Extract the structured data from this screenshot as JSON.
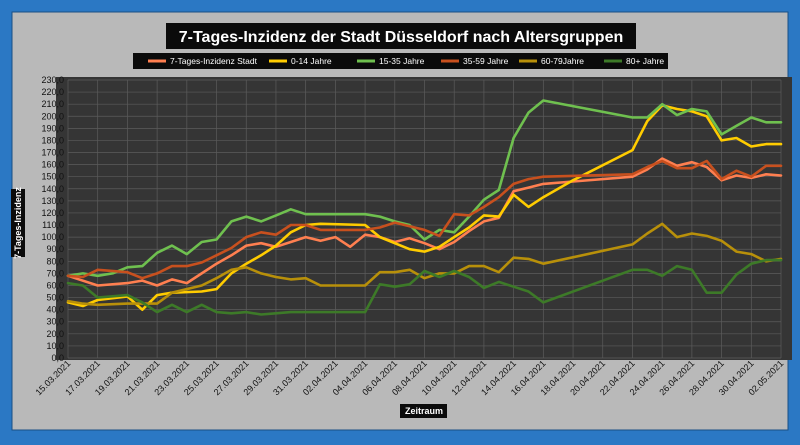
{
  "chart_data": {
    "type": "line",
    "title": "7-Tages-Inzidenz der Stadt Düsseldorf nach Altersgruppen",
    "xlabel": "Zeitraum",
    "ylabel": "7-Tages-Inzidenz",
    "ylim": [
      0,
      230
    ],
    "ytick_step": 10,
    "grid": true,
    "legend_position": "top",
    "x_start": "15.03.2021",
    "x_end": "02.05.2021",
    "x_ticks": [
      "15.03.2021",
      "17.03.2021",
      "19.03.2021",
      "21.03.2021",
      "23.03.2021",
      "25.03.2021",
      "27.03.2021",
      "29.03.2021",
      "31.03.2021",
      "02.04.2021",
      "04.04.2021",
      "06.04.2021",
      "08.04.2021",
      "10.04.2021",
      "12.04.2021",
      "14.04.2021",
      "16.04.2021",
      "18.04.2021",
      "20.04.2021",
      "22.04.2021",
      "24.04.2021",
      "26.04.2021",
      "28.04.2021",
      "30.04.2021",
      "02.05.2021"
    ],
    "y_ticks": [
      "0,0",
      "10,0",
      "20,0",
      "30,0",
      "40,0",
      "50,0",
      "60,0",
      "70,0",
      "80,0",
      "90,0",
      "100,0",
      "110,0",
      "120,0",
      "130,0",
      "140,0",
      "150,0",
      "160,0",
      "170,0",
      "180,0",
      "190,0",
      "200,0",
      "210,0",
      "220,0",
      "230,0"
    ],
    "series": [
      {
        "name": "7-Tages-Inzidenz Stadt",
        "color": "#ff7f50",
        "points": [
          [
            "15.03.2021",
            68
          ],
          [
            "17.03.2021",
            60
          ],
          [
            "19.03.2021",
            62
          ],
          [
            "20.03.2021",
            64
          ],
          [
            "21.03.2021",
            60
          ],
          [
            "22.03.2021",
            65
          ],
          [
            "23.03.2021",
            62
          ],
          [
            "24.03.2021",
            70
          ],
          [
            "25.03.2021",
            78
          ],
          [
            "26.03.2021",
            85
          ],
          [
            "27.03.2021",
            93
          ],
          [
            "28.03.2021",
            95
          ],
          [
            "29.03.2021",
            92
          ],
          [
            "30.03.2021",
            96
          ],
          [
            "31.03.2021",
            100
          ],
          [
            "01.04.2021",
            97
          ],
          [
            "02.04.2021",
            100
          ],
          [
            "03.04.2021",
            92
          ],
          [
            "04.04.2021",
            102
          ],
          [
            "05.04.2021",
            100
          ],
          [
            "06.04.2021",
            96
          ],
          [
            "07.04.2021",
            99
          ],
          [
            "08.04.2021",
            95
          ],
          [
            "09.04.2021",
            90
          ],
          [
            "10.04.2021",
            96
          ],
          [
            "11.04.2021",
            105
          ],
          [
            "12.04.2021",
            113
          ],
          [
            "13.04.2021",
            116
          ],
          [
            "14.04.2021",
            138
          ],
          [
            "15.04.2021",
            141
          ],
          [
            "16.04.2021",
            144
          ],
          [
            "18.04.2021",
            146
          ],
          [
            "22.04.2021",
            150
          ],
          [
            "23.04.2021",
            156
          ],
          [
            "24.04.2021",
            165
          ],
          [
            "25.04.2021",
            159
          ],
          [
            "26.04.2021",
            162
          ],
          [
            "27.04.2021",
            158
          ],
          [
            "28.04.2021",
            147
          ],
          [
            "29.04.2021",
            151
          ],
          [
            "30.04.2021",
            149
          ],
          [
            "01.05.2021",
            152
          ],
          [
            "02.05.2021",
            151
          ]
        ]
      },
      {
        "name": "0-14 Jahre",
        "color": "#ffcc00",
        "points": [
          [
            "15.03.2021",
            46
          ],
          [
            "16.03.2021",
            43
          ],
          [
            "17.03.2021",
            48
          ],
          [
            "19.03.2021",
            51
          ],
          [
            "20.03.2021",
            40
          ],
          [
            "21.03.2021",
            52
          ],
          [
            "22.03.2021",
            54
          ],
          [
            "24.03.2021",
            55
          ],
          [
            "25.03.2021",
            57
          ],
          [
            "26.03.2021",
            70
          ],
          [
            "27.03.2021",
            78
          ],
          [
            "28.03.2021",
            85
          ],
          [
            "29.03.2021",
            93
          ],
          [
            "30.03.2021",
            104
          ],
          [
            "31.03.2021",
            110
          ],
          [
            "01.04.2021",
            111
          ],
          [
            "04.04.2021",
            110
          ],
          [
            "05.04.2021",
            100
          ],
          [
            "06.04.2021",
            95
          ],
          [
            "07.04.2021",
            90
          ],
          [
            "08.04.2021",
            88
          ],
          [
            "09.04.2021",
            92
          ],
          [
            "10.04.2021",
            100
          ],
          [
            "11.04.2021",
            108
          ],
          [
            "12.04.2021",
            118
          ],
          [
            "13.04.2021",
            117
          ],
          [
            "14.04.2021",
            135
          ],
          [
            "15.04.2021",
            125
          ],
          [
            "16.04.2021",
            133
          ],
          [
            "18.04.2021",
            147
          ],
          [
            "22.04.2021",
            172
          ],
          [
            "23.04.2021",
            196
          ],
          [
            "24.04.2021",
            209
          ],
          [
            "25.04.2021",
            206
          ],
          [
            "26.04.2021",
            204
          ],
          [
            "27.04.2021",
            200
          ],
          [
            "28.04.2021",
            180
          ],
          [
            "29.04.2021",
            182
          ],
          [
            "30.04.2021",
            175
          ],
          [
            "01.05.2021",
            177
          ],
          [
            "02.05.2021",
            177
          ]
        ]
      },
      {
        "name": "15-35 Jahre",
        "color": "#6fc04f",
        "points": [
          [
            "15.03.2021",
            68
          ],
          [
            "16.03.2021",
            70
          ],
          [
            "17.03.2021",
            68
          ],
          [
            "18.03.2021",
            70
          ],
          [
            "19.03.2021",
            75
          ],
          [
            "20.03.2021",
            76
          ],
          [
            "21.03.2021",
            87
          ],
          [
            "22.03.2021",
            93
          ],
          [
            "23.03.2021",
            86
          ],
          [
            "24.03.2021",
            96
          ],
          [
            "25.03.2021",
            98
          ],
          [
            "26.03.2021",
            113
          ],
          [
            "27.03.2021",
            117
          ],
          [
            "28.03.2021",
            113
          ],
          [
            "29.03.2021",
            118
          ],
          [
            "30.03.2021",
            123
          ],
          [
            "31.03.2021",
            119
          ],
          [
            "04.04.2021",
            119
          ],
          [
            "05.04.2021",
            117
          ],
          [
            "06.04.2021",
            113
          ],
          [
            "07.04.2021",
            110
          ],
          [
            "08.04.2021",
            98
          ],
          [
            "09.04.2021",
            106
          ],
          [
            "10.04.2021",
            104
          ],
          [
            "11.04.2021",
            117
          ],
          [
            "12.04.2021",
            131
          ],
          [
            "13.04.2021",
            139
          ],
          [
            "14.04.2021",
            182
          ],
          [
            "15.04.2021",
            203
          ],
          [
            "16.04.2021",
            213
          ],
          [
            "22.04.2021",
            199
          ],
          [
            "23.04.2021",
            199
          ],
          [
            "24.04.2021",
            210
          ],
          [
            "25.04.2021",
            201
          ],
          [
            "26.04.2021",
            206
          ],
          [
            "27.04.2021",
            204
          ],
          [
            "28.04.2021",
            185
          ],
          [
            "29.04.2021",
            192
          ],
          [
            "30.04.2021",
            199
          ],
          [
            "01.05.2021",
            195
          ],
          [
            "02.05.2021",
            195
          ]
        ]
      },
      {
        "name": "35-59 Jahre",
        "color": "#c8501e",
        "points": [
          [
            "15.03.2021",
            68
          ],
          [
            "16.03.2021",
            67
          ],
          [
            "17.03.2021",
            73
          ],
          [
            "19.03.2021",
            71
          ],
          [
            "20.03.2021",
            66
          ],
          [
            "21.03.2021",
            70
          ],
          [
            "22.03.2021",
            76
          ],
          [
            "23.03.2021",
            76
          ],
          [
            "24.03.2021",
            79
          ],
          [
            "25.03.2021",
            85
          ],
          [
            "26.03.2021",
            91
          ],
          [
            "27.03.2021",
            100
          ],
          [
            "28.03.2021",
            104
          ],
          [
            "29.03.2021",
            102
          ],
          [
            "30.03.2021",
            110
          ],
          [
            "31.03.2021",
            110
          ],
          [
            "01.04.2021",
            106
          ],
          [
            "04.04.2021",
            106
          ],
          [
            "05.04.2021",
            108
          ],
          [
            "06.04.2021",
            112
          ],
          [
            "07.04.2021",
            109
          ],
          [
            "08.04.2021",
            106
          ],
          [
            "09.04.2021",
            101
          ],
          [
            "10.04.2021",
            119
          ],
          [
            "11.04.2021",
            118
          ],
          [
            "12.04.2021",
            125
          ],
          [
            "13.04.2021",
            133
          ],
          [
            "14.04.2021",
            144
          ],
          [
            "15.04.2021",
            148
          ],
          [
            "16.04.2021",
            150
          ],
          [
            "22.04.2021",
            152
          ],
          [
            "23.04.2021",
            158
          ],
          [
            "24.04.2021",
            163
          ],
          [
            "25.04.2021",
            157
          ],
          [
            "26.04.2021",
            157
          ],
          [
            "27.04.2021",
            163
          ],
          [
            "28.04.2021",
            148
          ],
          [
            "29.04.2021",
            155
          ],
          [
            "30.04.2021",
            150
          ],
          [
            "01.05.2021",
            159
          ],
          [
            "02.05.2021",
            159
          ]
        ]
      },
      {
        "name": "60-79Jahre",
        "color": "#b8900a",
        "points": [
          [
            "15.03.2021",
            47
          ],
          [
            "16.03.2021",
            45
          ],
          [
            "17.03.2021",
            44
          ],
          [
            "19.03.2021",
            45
          ],
          [
            "21.03.2021",
            45
          ],
          [
            "22.03.2021",
            54
          ],
          [
            "24.03.2021",
            60
          ],
          [
            "25.03.2021",
            66
          ],
          [
            "26.03.2021",
            73
          ],
          [
            "27.03.2021",
            75
          ],
          [
            "28.03.2021",
            70
          ],
          [
            "29.03.2021",
            67
          ],
          [
            "30.03.2021",
            65
          ],
          [
            "31.03.2021",
            66
          ],
          [
            "01.04.2021",
            60
          ],
          [
            "04.04.2021",
            60
          ],
          [
            "05.04.2021",
            71
          ],
          [
            "06.04.2021",
            71
          ],
          [
            "07.04.2021",
            73
          ],
          [
            "08.04.2021",
            66
          ],
          [
            "09.04.2021",
            70
          ],
          [
            "10.04.2021",
            70
          ],
          [
            "11.04.2021",
            76
          ],
          [
            "12.04.2021",
            76
          ],
          [
            "13.04.2021",
            71
          ],
          [
            "14.04.2021",
            83
          ],
          [
            "15.04.2021",
            82
          ],
          [
            "16.04.2021",
            78
          ],
          [
            "22.04.2021",
            94
          ],
          [
            "23.04.2021",
            103
          ],
          [
            "24.04.2021",
            111
          ],
          [
            "25.04.2021",
            100
          ],
          [
            "26.04.2021",
            103
          ],
          [
            "27.04.2021",
            101
          ],
          [
            "28.04.2021",
            97
          ],
          [
            "29.04.2021",
            88
          ],
          [
            "30.04.2021",
            86
          ],
          [
            "01.05.2021",
            80
          ],
          [
            "02.05.2021",
            82
          ]
        ]
      },
      {
        "name": "80+ Jahre",
        "color": "#3d7a28",
        "points": [
          [
            "15.03.2021",
            62
          ],
          [
            "16.03.2021",
            60
          ],
          [
            "17.03.2021",
            50
          ],
          [
            "19.03.2021",
            52
          ],
          [
            "20.03.2021",
            46
          ],
          [
            "21.03.2021",
            38
          ],
          [
            "22.03.2021",
            44
          ],
          [
            "23.03.2021",
            38
          ],
          [
            "24.03.2021",
            44
          ],
          [
            "25.03.2021",
            38
          ],
          [
            "26.03.2021",
            37
          ],
          [
            "27.03.2021",
            38
          ],
          [
            "28.03.2021",
            36
          ],
          [
            "29.03.2021",
            37
          ],
          [
            "30.03.2021",
            38
          ],
          [
            "04.04.2021",
            38
          ],
          [
            "05.04.2021",
            61
          ],
          [
            "06.04.2021",
            59
          ],
          [
            "07.04.2021",
            61
          ],
          [
            "08.04.2021",
            72
          ],
          [
            "09.04.2021",
            67
          ],
          [
            "10.04.2021",
            72
          ],
          [
            "11.04.2021",
            67
          ],
          [
            "12.04.2021",
            58
          ],
          [
            "13.04.2021",
            63
          ],
          [
            "14.04.2021",
            59
          ],
          [
            "15.04.2021",
            55
          ],
          [
            "16.04.2021",
            46
          ],
          [
            "22.04.2021",
            73
          ],
          [
            "23.04.2021",
            73
          ],
          [
            "24.04.2021",
            68
          ],
          [
            "25.04.2021",
            76
          ],
          [
            "26.04.2021",
            73
          ],
          [
            "27.04.2021",
            54
          ],
          [
            "28.04.2021",
            54
          ],
          [
            "29.04.2021",
            69
          ],
          [
            "30.04.2021",
            78
          ],
          [
            "01.05.2021",
            81
          ],
          [
            "02.05.2021",
            81
          ]
        ]
      }
    ]
  }
}
